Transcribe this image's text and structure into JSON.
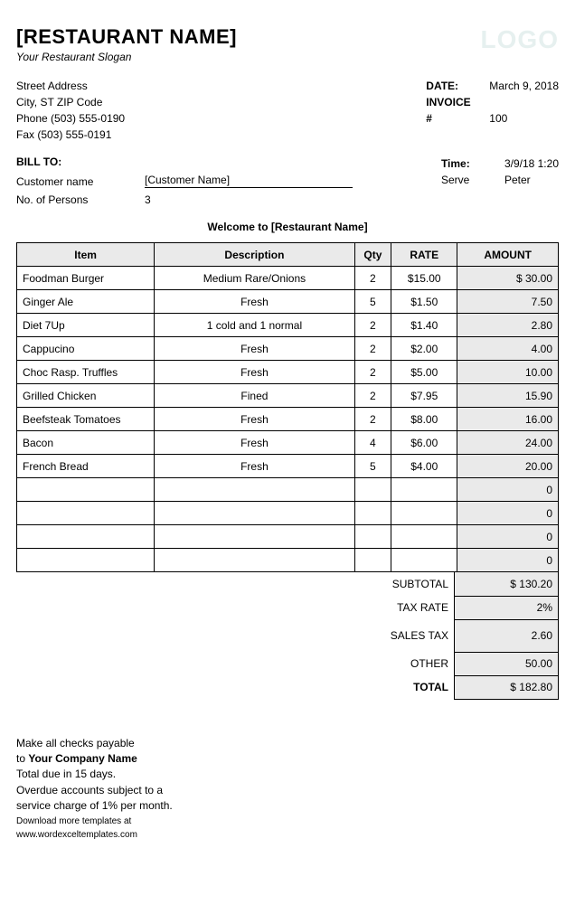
{
  "header": {
    "restaurant_name": "[RESTAURANT NAME]",
    "logo_text": "LOGO",
    "slogan": "Your Restaurant Slogan"
  },
  "address": {
    "street": "Street Address",
    "city_state_zip": "City, ST ZIP Code",
    "phone": "Phone (503) 555-0190",
    "fax": "Fax (503) 555-0191"
  },
  "meta": {
    "date_label": "DATE:",
    "date_value": "March 9, 2018",
    "invoice_label_1": "INVOICE",
    "invoice_label_2": "#",
    "invoice_value": "100",
    "time_label": "Time:",
    "time_value": "3/9/18 1:20",
    "serve_label": "Serve",
    "serve_value": "Peter"
  },
  "bill": {
    "bill_to_label": "BILL TO:",
    "customer_label": "Customer name",
    "customer_value": "[Customer Name]",
    "persons_label": "No. of Persons",
    "persons_value": "3"
  },
  "welcome_text": "Welcome to [Restaurant Name]",
  "table": {
    "columns": {
      "item": "Item",
      "description": "Description",
      "qty": "Qty",
      "rate": "RATE",
      "amount": "AMOUNT"
    },
    "header_bg": "#eaeaea",
    "amount_bg": "#eaeaea",
    "border_color": "#000000",
    "rows": [
      {
        "item": "Foodman Burger",
        "desc": "Medium Rare/Onions",
        "qty": "2",
        "rate": "$15.00",
        "amount": "$ 30.00"
      },
      {
        "item": "Ginger Ale",
        "desc": "Fresh",
        "qty": "5",
        "rate": "$1.50",
        "amount": "7.50"
      },
      {
        "item": "Diet 7Up",
        "desc": "1 cold and 1 normal",
        "qty": "2",
        "rate": "$1.40",
        "amount": "2.80"
      },
      {
        "item": "Cappucino",
        "desc": "Fresh",
        "qty": "2",
        "rate": "$2.00",
        "amount": "4.00"
      },
      {
        "item": "Choc Rasp. Truffles",
        "desc": "Fresh",
        "qty": "2",
        "rate": "$5.00",
        "amount": "10.00"
      },
      {
        "item": "Grilled Chicken",
        "desc": "Fined",
        "qty": "2",
        "rate": "$7.95",
        "amount": "15.90"
      },
      {
        "item": "Beefsteak Tomatoes",
        "desc": "Fresh",
        "qty": "2",
        "rate": "$8.00",
        "amount": "16.00"
      },
      {
        "item": "Bacon",
        "desc": "Fresh",
        "qty": "4",
        "rate": "$6.00",
        "amount": "24.00"
      },
      {
        "item": "French Bread",
        "desc": "Fresh",
        "qty": "5",
        "rate": "$4.00",
        "amount": "20.00"
      },
      {
        "item": "",
        "desc": "",
        "qty": "",
        "rate": "",
        "amount": "0"
      },
      {
        "item": "",
        "desc": "",
        "qty": "",
        "rate": "",
        "amount": "0"
      },
      {
        "item": "",
        "desc": "",
        "qty": "",
        "rate": "",
        "amount": "0"
      },
      {
        "item": "",
        "desc": "",
        "qty": "",
        "rate": "",
        "amount": "0"
      }
    ]
  },
  "totals": {
    "subtotal_label": "SUBTOTAL",
    "subtotal_value": "$ 130.20",
    "taxrate_label": "TAX RATE",
    "taxrate_value": "2%",
    "salestax_label": "SALES TAX",
    "salestax_value": "2.60",
    "other_label": "OTHER",
    "other_value": "50.00",
    "total_label": "TOTAL",
    "total_value": "$ 182.80"
  },
  "footer": {
    "line1a": "Make all checks payable",
    "line1b": "to ",
    "company": "Your Company Name",
    "line2": "Total due in 15 days.",
    "line3": "Overdue accounts subject to a service charge of 1% per month.",
    "small": "Download more templates at www.wordexceltemplates.com"
  },
  "styling": {
    "page_background": "#ffffff",
    "text_color": "#000000",
    "logo_color": "#e6f0ef",
    "title_fontsize": 22,
    "body_fontsize": 12,
    "footer_small_fontsize": 10
  }
}
